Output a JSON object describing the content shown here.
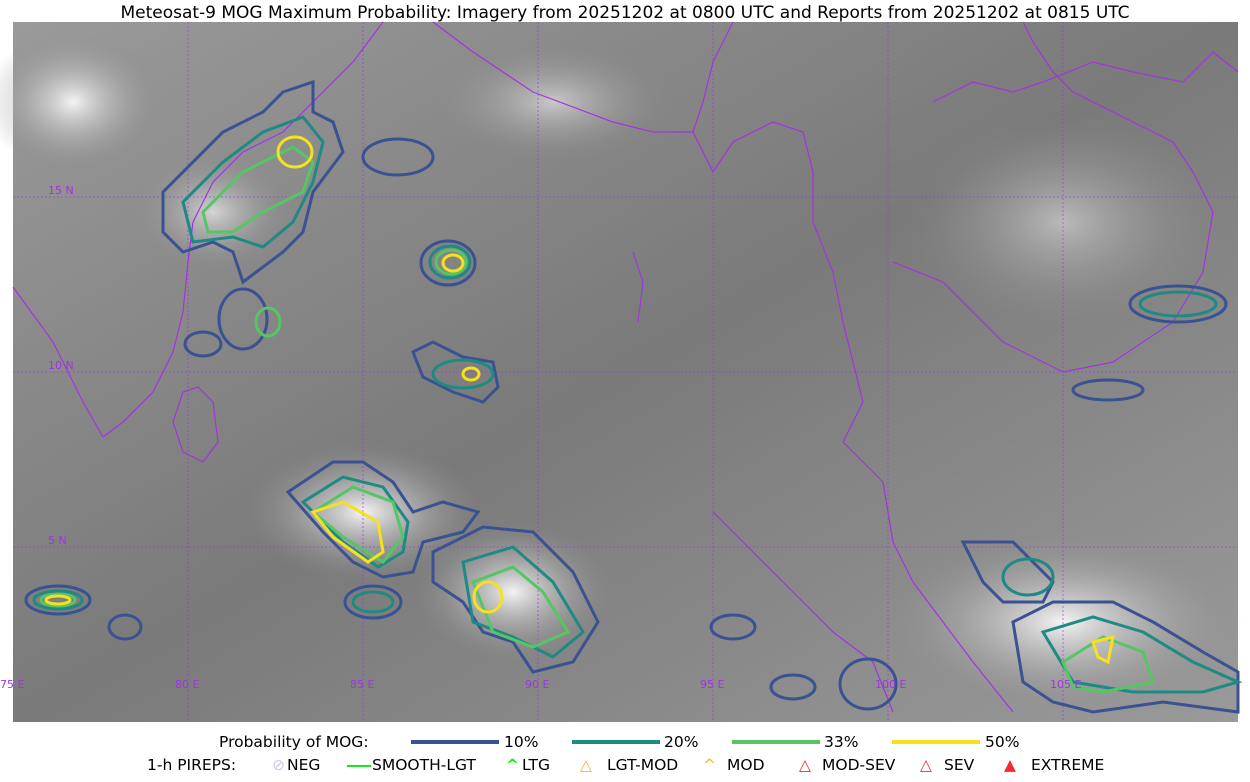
{
  "title": "Meteosat-9 MOG Maximum Probability: Imagery from 20251202 at 0800 UTC and Reports from 20251202 at 0815 UTC",
  "map": {
    "lat_labels": [
      "15 N",
      "10 N",
      "5 N"
    ],
    "lon_labels": [
      "75 E",
      "80 E",
      "85 E",
      "90 E",
      "95 E",
      "100 E",
      "105 E"
    ],
    "coastline_color": "#a035e0",
    "grid_color": "#a035e0"
  },
  "legend": {
    "probability_label": "Probability of MOG:",
    "levels": [
      {
        "label": "10%",
        "color": "#3a5291"
      },
      {
        "label": "20%",
        "color": "#1f8a83"
      },
      {
        "label": "33%",
        "color": "#56c566"
      },
      {
        "label": "50%",
        "color": "#f5e11c"
      }
    ],
    "pireps_label": "1-h PIREPS:",
    "pireps": [
      {
        "label": "NEG",
        "color": "#c8c8f5",
        "icon": "neg-icon"
      },
      {
        "label": "SMOOTH-LGT",
        "color": "#22e022",
        "icon": "smooth-lgt-icon"
      },
      {
        "label": "LTG",
        "color": "#22e022",
        "icon": "ltg-icon"
      },
      {
        "label": "LGT-MOD",
        "color": "#f5b52a",
        "icon": "lgt-mod-icon"
      },
      {
        "label": "MOD",
        "color": "#f5b52a",
        "icon": "mod-icon"
      },
      {
        "label": "MOD-SEV",
        "color": "#f52a2a",
        "icon": "mod-sev-icon"
      },
      {
        "label": "SEV",
        "color": "#f52a2a",
        "icon": "sev-icon"
      },
      {
        "label": "EXTREME",
        "color": "#f52a2a",
        "icon": "extreme-icon"
      }
    ]
  }
}
